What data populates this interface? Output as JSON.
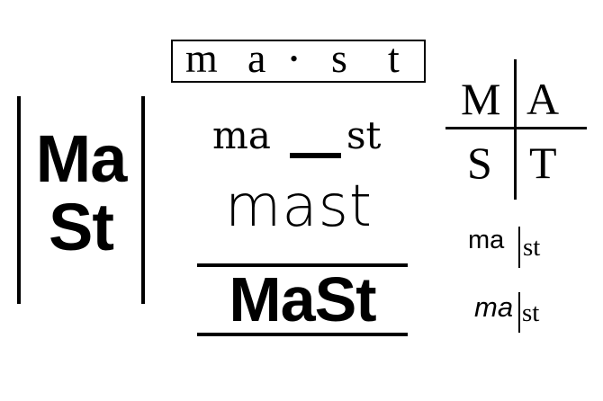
{
  "logo_stacked_bars": {
    "line1": "Ma",
    "line2": "St"
  },
  "logo_boxed": {
    "m": "m",
    "a": "a",
    "dot": "•",
    "s": "s",
    "t": "t"
  },
  "logo_underscore": {
    "left": "ma",
    "right": "st"
  },
  "logo_light": {
    "text": "mast"
  },
  "logo_bold_ruled": {
    "text": "MaSt"
  },
  "logo_quadrant": {
    "tl": "M",
    "tr": "A",
    "bl": "S",
    "br": "T"
  },
  "logo_bar_small": {
    "left": "ma",
    "right": "st"
  },
  "logo_bar_italic": {
    "left": "ma",
    "right": "st"
  }
}
